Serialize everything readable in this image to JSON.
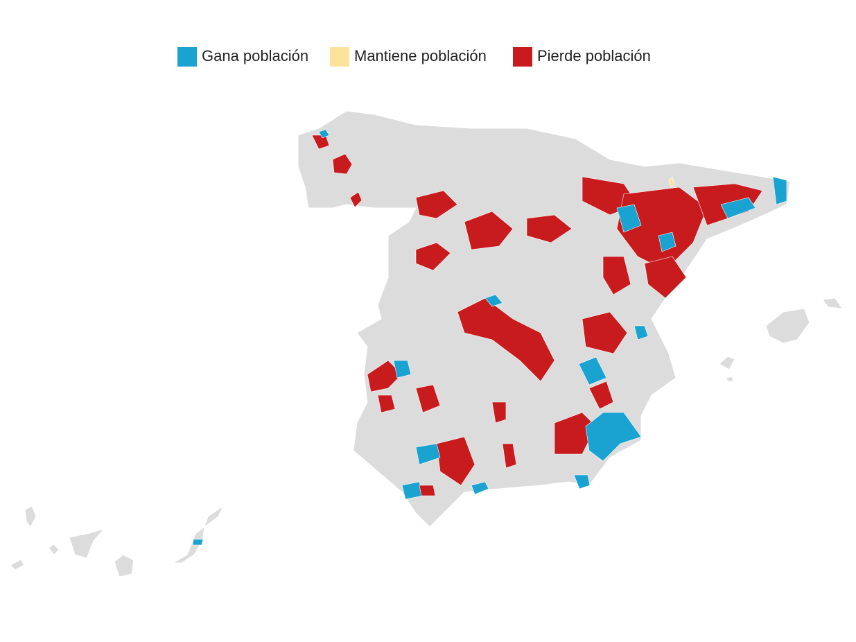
{
  "legend": {
    "items": [
      {
        "label": "Gana población",
        "color": "#1aa3d1"
      },
      {
        "label": "Mantiene población",
        "color": "#fde29b"
      },
      {
        "label": "Pierde población",
        "color": "#c81b1e"
      }
    ]
  }
}
